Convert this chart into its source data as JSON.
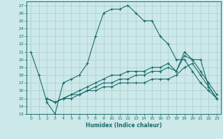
{
  "xlabel": "Humidex (Indice chaleur)",
  "xlim": [
    -0.5,
    23.5
  ],
  "ylim": [
    13,
    27.5
  ],
  "xticks": [
    0,
    1,
    2,
    3,
    4,
    5,
    6,
    7,
    8,
    9,
    10,
    11,
    12,
    13,
    14,
    15,
    16,
    17,
    18,
    19,
    20,
    21,
    22,
    23
  ],
  "yticks": [
    13,
    14,
    15,
    16,
    17,
    18,
    19,
    20,
    21,
    22,
    23,
    24,
    25,
    26,
    27
  ],
  "bg_color": "#cce8e8",
  "line_color": "#1a6b6b",
  "grid_color": "#aacece",
  "line1_x": [
    0,
    1,
    2,
    3,
    4,
    5,
    6,
    7,
    8,
    9,
    10,
    11,
    12,
    13,
    14,
    15,
    16,
    17,
    18,
    19,
    20,
    21,
    22,
    23
  ],
  "line1_y": [
    21,
    18,
    14.5,
    13,
    17,
    17.5,
    18,
    19.5,
    23,
    26,
    26.5,
    26.5,
    27,
    26,
    25,
    25,
    23,
    22,
    20,
    20,
    18.5,
    17,
    16,
    15
  ],
  "line2_x": [
    2,
    3,
    4,
    5,
    6,
    7,
    8,
    9,
    10,
    11,
    12,
    13,
    14,
    15,
    16,
    17,
    18,
    19,
    20,
    21,
    22,
    23
  ],
  "line2_y": [
    15,
    14.5,
    15,
    15,
    15.5,
    16,
    16.5,
    17,
    17,
    17.5,
    17.5,
    18,
    18,
    18.5,
    18.5,
    19,
    18.5,
    20.5,
    20,
    20,
    16.5,
    15
  ],
  "line3_x": [
    2,
    3,
    4,
    5,
    6,
    7,
    8,
    9,
    10,
    11,
    12,
    13,
    14,
    15,
    16,
    17,
    18,
    19,
    20,
    21,
    22,
    23
  ],
  "line3_y": [
    15,
    14.5,
    15,
    15.5,
    16,
    16.5,
    17,
    17.5,
    18,
    18,
    18.5,
    18.5,
    18.5,
    19,
    19,
    19.5,
    18.5,
    21,
    20,
    18.5,
    17,
    15.5
  ],
  "line4_x": [
    2,
    3,
    4,
    5,
    6,
    7,
    8,
    9,
    10,
    11,
    12,
    13,
    14,
    15,
    16,
    17,
    18,
    19,
    20,
    21,
    22,
    23
  ],
  "line4_y": [
    15,
    14.5,
    15,
    15.5,
    15.5,
    16,
    16,
    16.5,
    16.5,
    17,
    17,
    17,
    17,
    17.5,
    17.5,
    17.5,
    18,
    19,
    19.5,
    18,
    16.5,
    15
  ]
}
